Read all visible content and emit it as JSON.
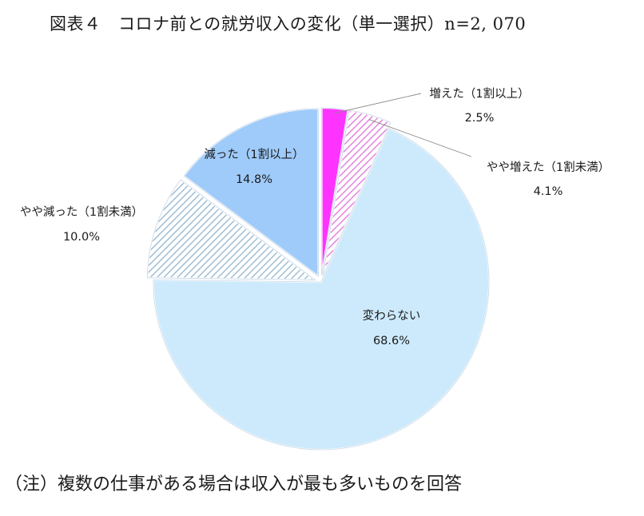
{
  "title": "図表４　コロナ前との就労収入の変化（単一選択）n=2, 070",
  "note": "（注）複数の仕事がある場合は収入が最も多いものを回答",
  "chart_data": {
    "type": "pie",
    "title": "図表４　コロナ前との就労収入の変化（単一選択）n=2, 070",
    "unit": "%",
    "slices": [
      {
        "label": "増えた（1割以上）",
        "value": 2.5,
        "value_label": "2.5%",
        "color": "#ff33ff",
        "pattern": "solid"
      },
      {
        "label": "やや増えた（1割未満）",
        "value": 4.1,
        "value_label": "4.1%",
        "color": "#e066d6",
        "pattern": "hatch"
      },
      {
        "label": "変わらない",
        "value": 68.6,
        "value_label": "68.6%",
        "color": "#cdeafc",
        "pattern": "solid"
      },
      {
        "label": "やや減った（1割未満）",
        "value": 10.0,
        "value_label": "10.0%",
        "color": "#8ab0cc",
        "pattern": "hatch"
      },
      {
        "label": "減った（1割以上）",
        "value": 14.8,
        "value_label": "14.8%",
        "color": "#9fcbfb",
        "pattern": "solid"
      }
    ]
  }
}
